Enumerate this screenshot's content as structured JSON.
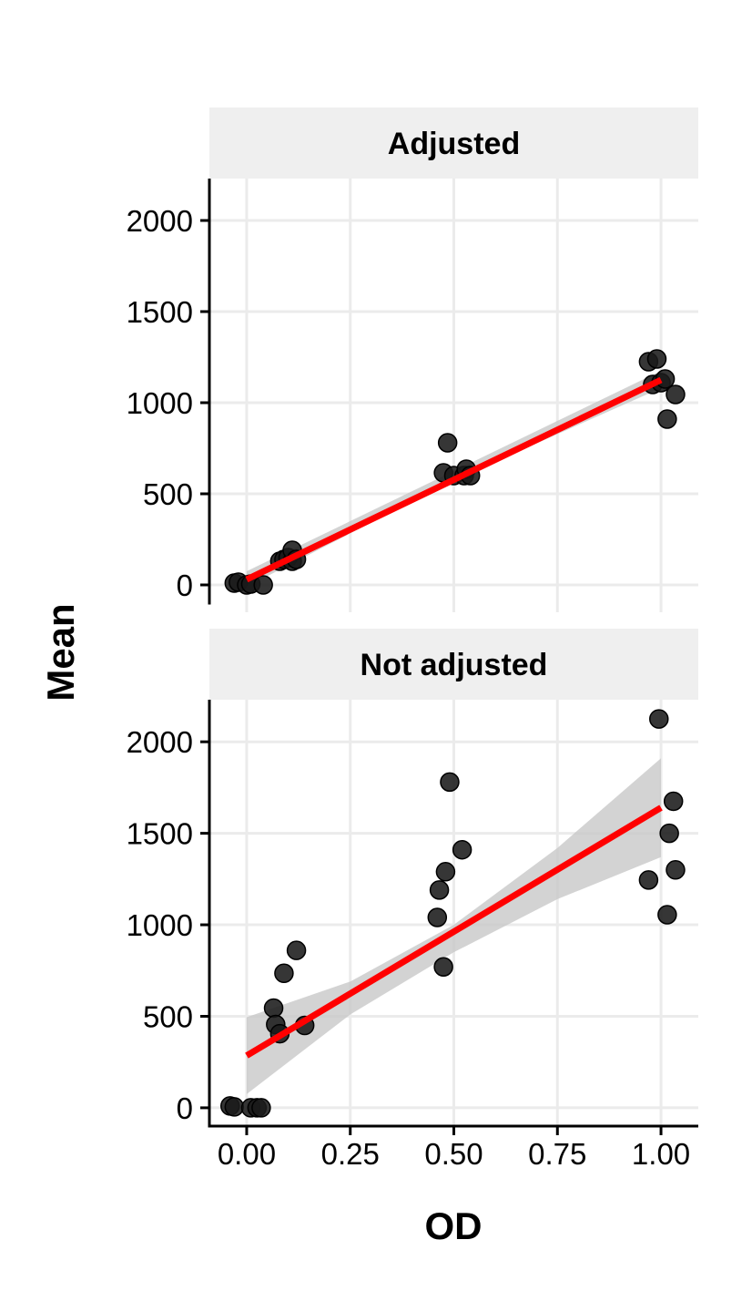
{
  "chart_data": {
    "type": "scatter",
    "xlabel": "OD",
    "ylabel": "Mean",
    "xlim": [
      -0.09,
      1.09
    ],
    "ylim": [
      -100,
      2230
    ],
    "x_ticks": [
      "0.00",
      "0.25",
      "0.50",
      "0.75",
      "1.00"
    ],
    "x_tick_values": [
      0,
      0.25,
      0.5,
      0.75,
      1.0
    ],
    "y_ticks": [
      "0",
      "500",
      "1000",
      "1500",
      "2000"
    ],
    "y_tick_values": [
      0,
      500,
      1000,
      1500,
      2000
    ],
    "grid": true,
    "colors": {
      "point": "#1a1a1a",
      "fit_line": "#ff0000",
      "ribbon": "#c8c8c8",
      "strip_bg": "#efefef",
      "grid": "#ebebeb"
    },
    "panels": [
      {
        "title": "Adjusted",
        "points": [
          [
            -0.03,
            10
          ],
          [
            -0.02,
            15
          ],
          [
            0.0,
            0
          ],
          [
            0.01,
            5
          ],
          [
            0.04,
            0
          ],
          [
            0.08,
            130
          ],
          [
            0.09,
            140
          ],
          [
            0.1,
            150
          ],
          [
            0.11,
            130
          ],
          [
            0.11,
            190
          ],
          [
            0.12,
            140
          ],
          [
            0.475,
            615
          ],
          [
            0.485,
            780
          ],
          [
            0.5,
            600
          ],
          [
            0.525,
            600
          ],
          [
            0.53,
            635
          ],
          [
            0.54,
            600
          ],
          [
            0.97,
            1225
          ],
          [
            0.98,
            1100
          ],
          [
            0.99,
            1240
          ],
          [
            1.0,
            1110
          ],
          [
            1.01,
            1130
          ],
          [
            1.015,
            910
          ],
          [
            1.035,
            1045
          ]
        ],
        "fit": {
          "x0": 0,
          "y0": 30,
          "x1": 1.0,
          "y1": 1125
        },
        "ribbon": {
          "x": [
            0,
            0.5,
            1.0
          ],
          "lower": [
            -10,
            575,
            1080
          ],
          "upper": [
            75,
            625,
            1175
          ]
        }
      },
      {
        "title": "Not adjusted",
        "points": [
          [
            -0.04,
            10
          ],
          [
            -0.03,
            5
          ],
          [
            0.01,
            0
          ],
          [
            0.025,
            0
          ],
          [
            0.035,
            0
          ],
          [
            0.065,
            545
          ],
          [
            0.07,
            455
          ],
          [
            0.08,
            405
          ],
          [
            0.09,
            735
          ],
          [
            0.12,
            860
          ],
          [
            0.14,
            450
          ],
          [
            0.46,
            1040
          ],
          [
            0.465,
            1190
          ],
          [
            0.475,
            770
          ],
          [
            0.48,
            1290
          ],
          [
            0.49,
            1780
          ],
          [
            0.52,
            1410
          ],
          [
            0.97,
            1245
          ],
          [
            0.995,
            2125
          ],
          [
            1.015,
            1055
          ],
          [
            1.02,
            1500
          ],
          [
            1.03,
            1675
          ],
          [
            1.035,
            1300
          ]
        ],
        "fit": {
          "x0": 0,
          "y0": 285,
          "x1": 1.0,
          "y1": 1640
        },
        "ribbon": {
          "x": [
            0,
            0.25,
            0.5,
            0.75,
            1.0
          ],
          "lower": [
            75,
            510,
            850,
            1140,
            1370
          ],
          "upper": [
            495,
            690,
            1000,
            1420,
            1910
          ]
        }
      }
    ]
  }
}
